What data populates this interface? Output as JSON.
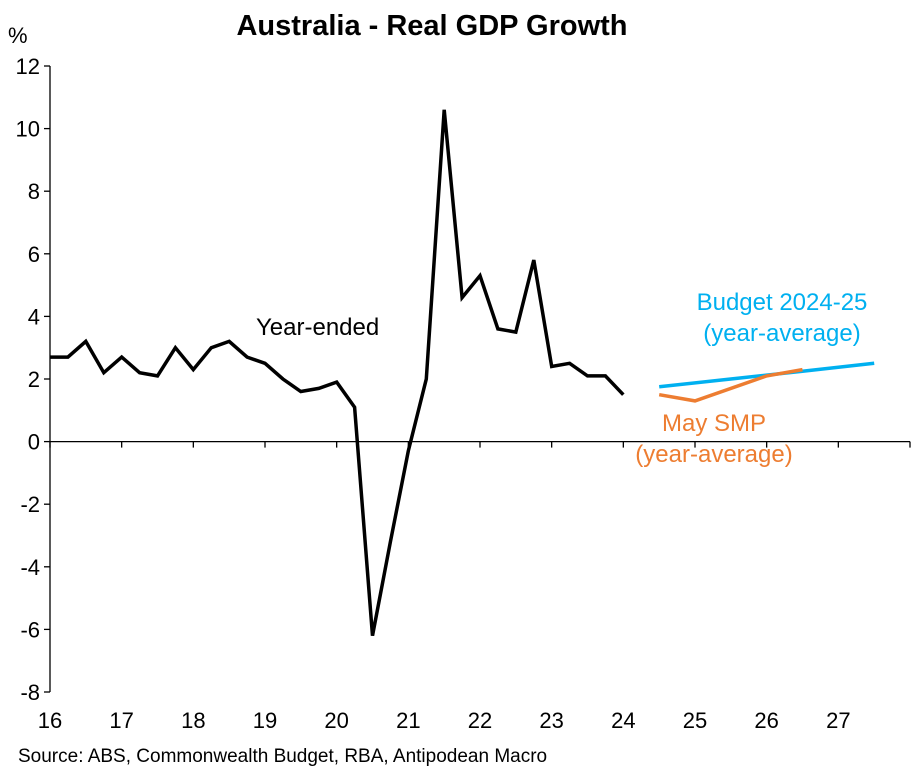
{
  "chart_data": {
    "type": "line",
    "title": "Australia - Real GDP Growth",
    "ylabel": "%",
    "ylim": [
      -8,
      12
    ],
    "yticks": [
      12,
      10,
      8,
      6,
      4,
      2,
      0,
      -2,
      -4,
      -6,
      -8
    ],
    "xlim": [
      2016,
      2028
    ],
    "xtick_labels": [
      "16",
      "17",
      "18",
      "19",
      "20",
      "21",
      "22",
      "23",
      "24",
      "25",
      "26",
      "27"
    ],
    "grid": false,
    "series": [
      {
        "name": "Year-ended",
        "color": "#000000",
        "x": [
          2016.0,
          2016.25,
          2016.5,
          2016.75,
          2017.0,
          2017.25,
          2017.5,
          2017.75,
          2018.0,
          2018.25,
          2018.5,
          2018.75,
          2019.0,
          2019.25,
          2019.5,
          2019.75,
          2020.0,
          2020.25,
          2020.5,
          2020.75,
          2021.0,
          2021.25,
          2021.5,
          2021.75,
          2022.0,
          2022.25,
          2022.5,
          2022.75,
          2023.0,
          2023.25,
          2023.5,
          2023.75,
          2024.0
        ],
        "y": [
          2.7,
          2.7,
          3.2,
          2.2,
          2.7,
          2.2,
          2.1,
          3.0,
          2.3,
          3.0,
          3.2,
          2.7,
          2.5,
          2.0,
          1.6,
          1.7,
          1.9,
          1.1,
          -6.2,
          -3.2,
          -0.3,
          2.0,
          10.6,
          4.6,
          5.3,
          3.6,
          3.5,
          5.8,
          2.4,
          2.5,
          2.1,
          2.1,
          1.5
        ]
      },
      {
        "name": "Budget 2024-25 (year-average)",
        "color": "#00B0F0",
        "x": [
          2024.5,
          2025.5,
          2026.5,
          2027.5
        ],
        "y": [
          1.75,
          2.0,
          2.25,
          2.5
        ]
      },
      {
        "name": "May SMP (year-average)",
        "color": "#ED7D31",
        "x": [
          2024.5,
          2025.0,
          2026.0,
          2026.5
        ],
        "y": [
          1.5,
          1.3,
          2.1,
          2.3
        ]
      }
    ],
    "annotations": {
      "year_ended": "Year-ended",
      "budget_line1": "Budget 2024-25",
      "budget_line2": "(year-average)",
      "smp_line1": "May SMP",
      "smp_line2": "(year-average)"
    }
  },
  "source": "Source: ABS, Commonwealth Budget, RBA, Antipodean Macro"
}
